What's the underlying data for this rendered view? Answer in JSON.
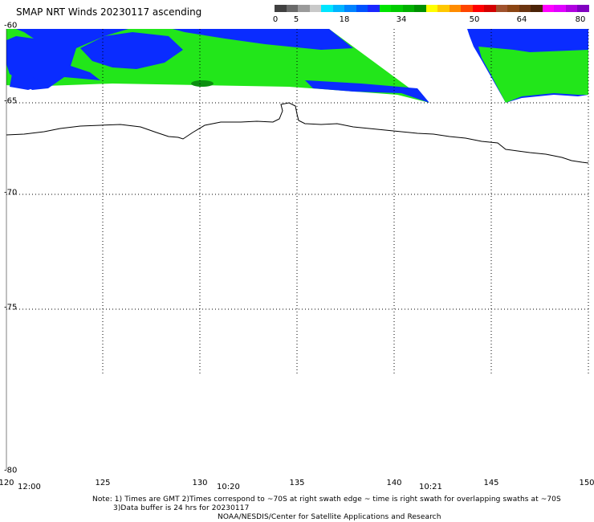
{
  "title": "SMAP NRT Winds 20230117 ascending",
  "colorbar": {
    "ticks": [
      "0",
      "5",
      "18",
      "34",
      "50",
      "64",
      "80"
    ],
    "segments": [
      "#404040",
      "#6a6a6a",
      "#9a9a9a",
      "#c9c9c9",
      "#00e5ff",
      "#00b4ff",
      "#0083ff",
      "#0052ff",
      "#1a28ff",
      "#00e400",
      "#00cc00",
      "#00b000",
      "#009000",
      "#ffff00",
      "#ffc800",
      "#ff8c00",
      "#ff4500",
      "#ff0000",
      "#d40000",
      "#a0522d",
      "#8b4513",
      "#6b3410",
      "#4a2308",
      "#ff00ff",
      "#e000ff",
      "#b000e0",
      "#8000c0"
    ]
  },
  "map": {
    "lat_labels": [
      "-60",
      "-65",
      "-70",
      "-75",
      "-80"
    ],
    "lon_labels": [
      "120",
      "125",
      "130",
      "135",
      "140",
      "145",
      "150"
    ],
    "time_labels": [
      "12:00",
      "10:20",
      "10:21"
    ],
    "colors": {
      "calm_blue": "#0a2cff",
      "breeze_green": "#22e61a",
      "coast": "#000000",
      "grid": "#000000"
    }
  },
  "notes": {
    "line1": "Note: 1) Times are GMT 2)Times correspond to ~70S at right swath edge ~ time is right swath for overlapping swaths at ~70S",
    "line2": "3)Data buffer is 24 hrs for 20230117",
    "line3": "NOAA/NESDIS/Center for Satellite Applications and Research"
  }
}
